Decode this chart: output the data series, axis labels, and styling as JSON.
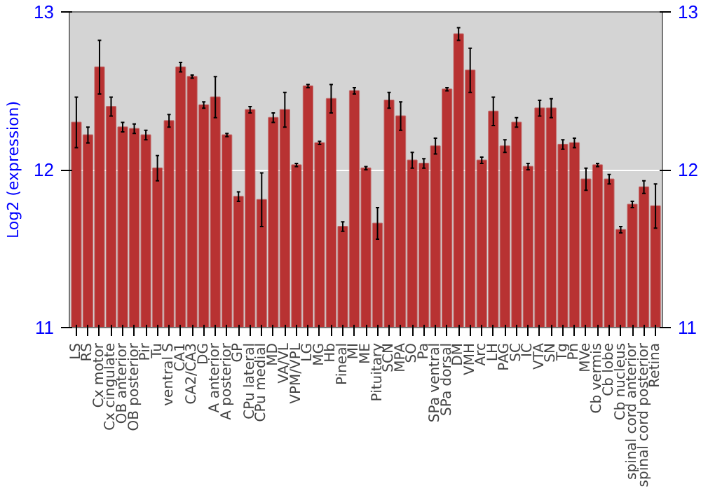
{
  "chart_data": {
    "type": "bar",
    "ylabel": "Log2 (expression)",
    "categories": [
      "LS",
      "RS",
      "Cx motor",
      "Cx cingulate",
      "OB anterior",
      "OB posterior",
      "Pir",
      "Tu",
      "ventral S",
      "CA1",
      "CA2/CA3",
      "DG",
      "A anterior",
      "A posterior",
      "GP",
      "CPu lateral",
      "CPu medial",
      "MD",
      "VA/VL",
      "VPM/VPL",
      "LG",
      "MG",
      "Hb",
      "Pineal",
      "MI",
      "ME",
      "Pituitary",
      "SCN",
      "MPA",
      "SO",
      "Pa",
      "SPa ventral",
      "SPa dorsal",
      "DM",
      "VMH",
      "Arc",
      "LH",
      "PAG",
      "SC",
      "IC",
      "VTA",
      "SN",
      "Tg",
      "Pn",
      "MVe",
      "Cb vermis",
      "Cb lobe",
      "Cb nucleus",
      "spinal cord anterior",
      "spinal cord posterior",
      "Retina"
    ],
    "values": [
      12.3,
      12.22,
      12.65,
      12.4,
      12.27,
      12.26,
      12.22,
      12.01,
      12.31,
      12.65,
      12.59,
      12.41,
      12.46,
      12.22,
      11.83,
      12.38,
      11.81,
      12.33,
      12.38,
      12.03,
      12.53,
      12.17,
      12.45,
      11.64,
      12.5,
      12.01,
      11.66,
      12.44,
      12.34,
      12.06,
      12.04,
      12.15,
      12.51,
      12.86,
      12.63,
      12.06,
      12.37,
      12.15,
      12.3,
      12.02,
      12.39,
      12.39,
      12.16,
      12.17,
      11.94,
      12.03,
      11.94,
      11.62,
      11.78,
      11.89,
      11.77
    ],
    "errors": [
      0.16,
      0.05,
      0.17,
      0.06,
      0.03,
      0.03,
      0.03,
      0.08,
      0.04,
      0.03,
      0.01,
      0.02,
      0.13,
      0.01,
      0.03,
      0.02,
      0.17,
      0.03,
      0.11,
      0.01,
      0.01,
      0.01,
      0.09,
      0.03,
      0.02,
      0.01,
      0.1,
      0.05,
      0.09,
      0.05,
      0.03,
      0.05,
      0.01,
      0.04,
      0.14,
      0.02,
      0.09,
      0.04,
      0.03,
      0.02,
      0.05,
      0.06,
      0.03,
      0.03,
      0.07,
      0.01,
      0.03,
      0.02,
      0.02,
      0.04,
      0.14
    ],
    "color": "#b83232",
    "ylim": [
      11,
      13
    ],
    "yticks": [
      11,
      12,
      13
    ],
    "y2lim": [
      11,
      13
    ],
    "y2ticks": [
      11,
      12,
      13
    ],
    "grid": "y"
  }
}
